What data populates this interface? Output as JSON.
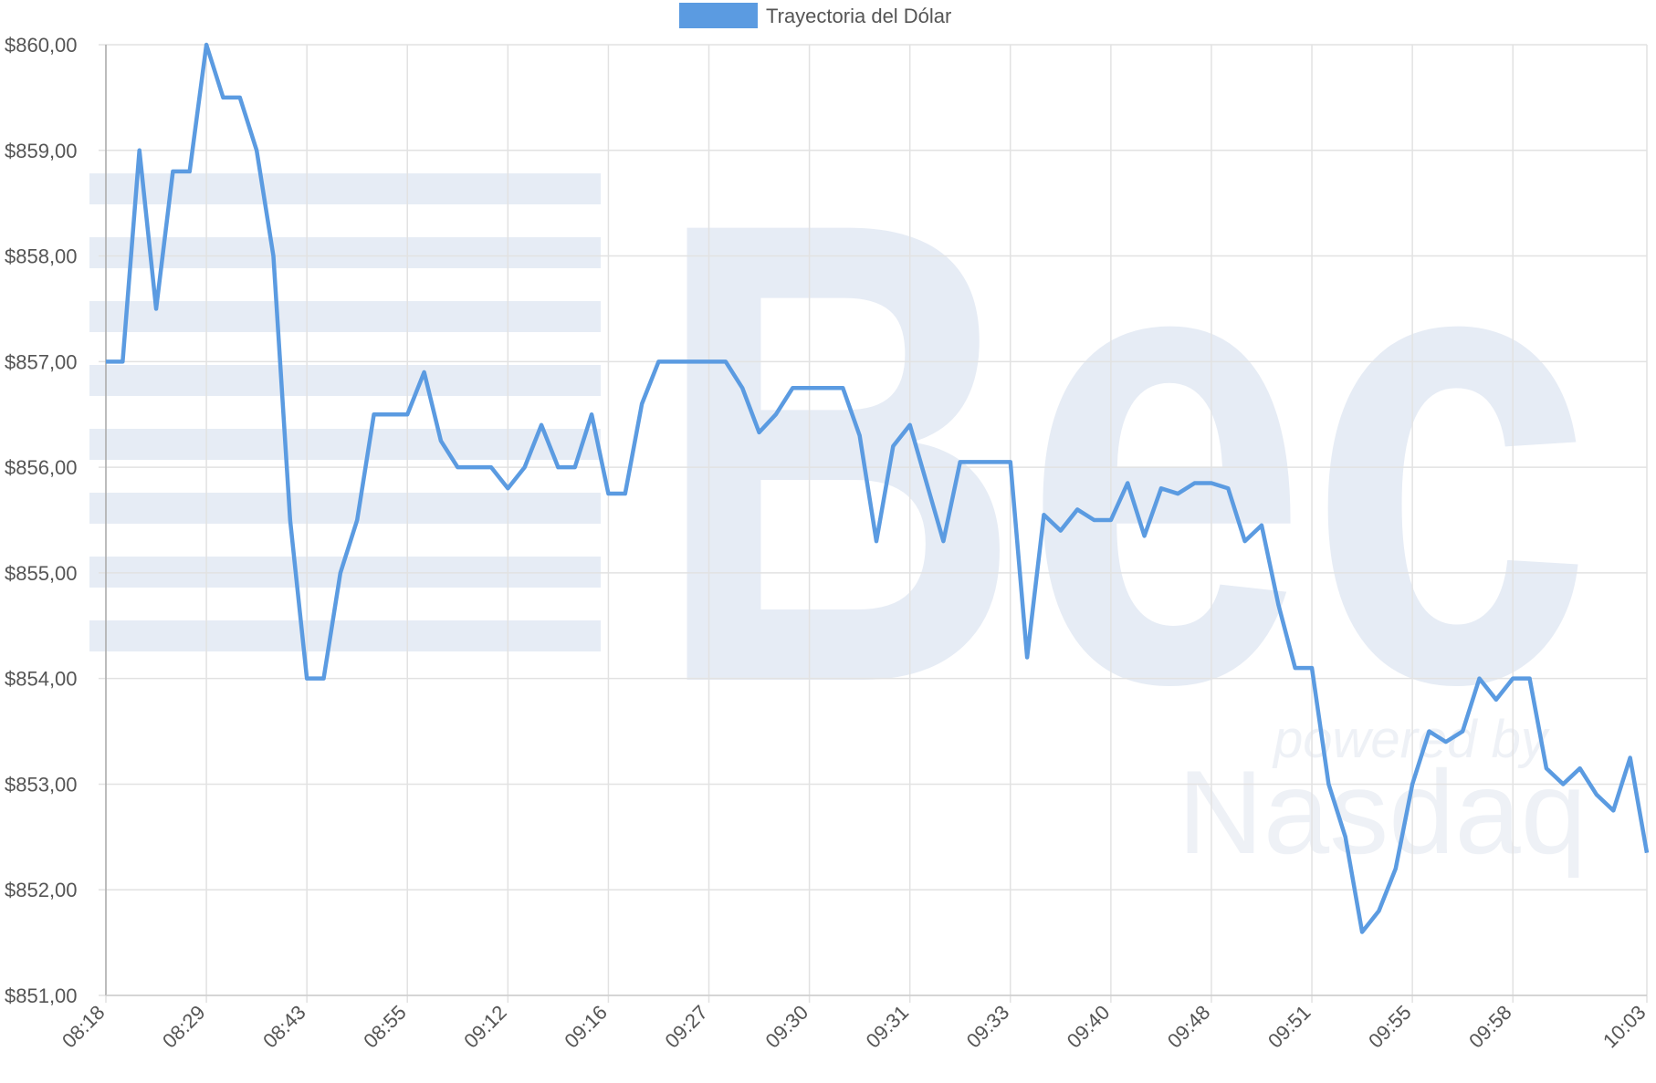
{
  "chart_data": {
    "type": "line",
    "legend_position": "top",
    "grid": true,
    "categories": [
      "08:18",
      null,
      null,
      null,
      null,
      null,
      "08:29",
      null,
      null,
      null,
      null,
      null,
      "08:43",
      null,
      null,
      null,
      null,
      null,
      "08:55",
      null,
      null,
      null,
      null,
      null,
      "09:12",
      null,
      null,
      null,
      null,
      null,
      "09:16",
      null,
      null,
      null,
      null,
      null,
      "09:27",
      null,
      null,
      null,
      null,
      null,
      "09:30",
      null,
      null,
      null,
      null,
      null,
      "09:31",
      null,
      null,
      null,
      null,
      null,
      "09:33",
      null,
      null,
      null,
      null,
      null,
      "09:40",
      null,
      null,
      null,
      null,
      null,
      "09:48",
      null,
      null,
      null,
      null,
      null,
      "09:51",
      null,
      null,
      null,
      null,
      null,
      "09:55",
      null,
      null,
      null,
      null,
      null,
      "09:58",
      null,
      null,
      null,
      null,
      null,
      null,
      null,
      "10:03"
    ],
    "series": [
      {
        "name": "Trayectoria del Dólar",
        "color": "#5b9be1",
        "values": [
          857,
          857,
          859,
          857.5,
          858.8,
          858.8,
          860,
          859.5,
          859.5,
          859,
          858,
          855.5,
          854,
          854,
          855,
          855.5,
          856.5,
          856.5,
          856.5,
          856.9,
          856.25,
          856,
          856,
          856,
          855.8,
          856,
          856.4,
          856,
          856,
          856.5,
          855.75,
          855.75,
          856.6,
          857,
          857,
          857,
          857,
          857,
          856.75,
          856.33,
          856.5,
          856.75,
          856.75,
          856.75,
          856.75,
          856.3,
          855.3,
          856.2,
          856.4,
          855.85,
          855.3,
          856.05,
          856.05,
          856.05,
          856.05,
          854.2,
          855.55,
          855.4,
          855.6,
          855.5,
          855.5,
          855.85,
          855.35,
          855.8,
          855.75,
          855.85,
          855.85,
          855.8,
          855.3,
          855.45,
          854.7,
          854.1,
          854.1,
          853,
          852.5,
          851.6,
          851.8,
          852.2,
          853,
          853.5,
          853.4,
          853.5,
          854,
          853.8,
          854,
          854,
          853.15,
          853,
          853.15,
          852.9,
          852.75,
          853.25,
          852.35
        ]
      }
    ],
    "ylim": [
      851,
      860
    ],
    "yticks": [
      {
        "value": 851,
        "label": "$851,00"
      },
      {
        "value": 852,
        "label": "$852,00"
      },
      {
        "value": 853,
        "label": "$853,00"
      },
      {
        "value": 854,
        "label": "$854,00"
      },
      {
        "value": 855,
        "label": "$855,00"
      },
      {
        "value": 856,
        "label": "$856,00"
      },
      {
        "value": 857,
        "label": "$857,00"
      },
      {
        "value": 858,
        "label": "$858,00"
      },
      {
        "value": 859,
        "label": "$859,00"
      },
      {
        "value": 860,
        "label": "$860,00"
      }
    ],
    "watermark": {
      "logo": "Bec",
      "tagline": "powered by",
      "brand": "Nasdaq"
    }
  }
}
